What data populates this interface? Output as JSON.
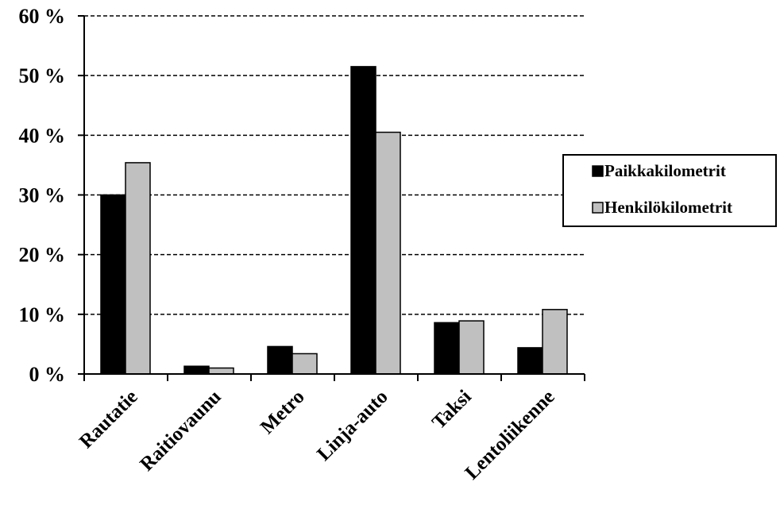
{
  "chart_data": {
    "type": "bar",
    "categories": [
      "Rautatie",
      "Raitiovaunu",
      "Metro",
      "Linja-auto",
      "Taksi",
      "Lentoliikenne"
    ],
    "series": [
      {
        "name": "Paikkakilometrit",
        "color": "#000000",
        "values": [
          30.0,
          1.3,
          4.6,
          51.5,
          8.6,
          4.4
        ]
      },
      {
        "name": "Henkilökilometrit",
        "color": "#c0c0c0",
        "values": [
          35.4,
          1.0,
          3.4,
          40.5,
          8.9,
          10.8
        ]
      }
    ],
    "yticks": [
      "0 %",
      "10 %",
      "20 %",
      "30 %",
      "40 %",
      "50 %",
      "60 %"
    ],
    "ylim": [
      0,
      60
    ],
    "grid": true,
    "legend_position": "right"
  }
}
